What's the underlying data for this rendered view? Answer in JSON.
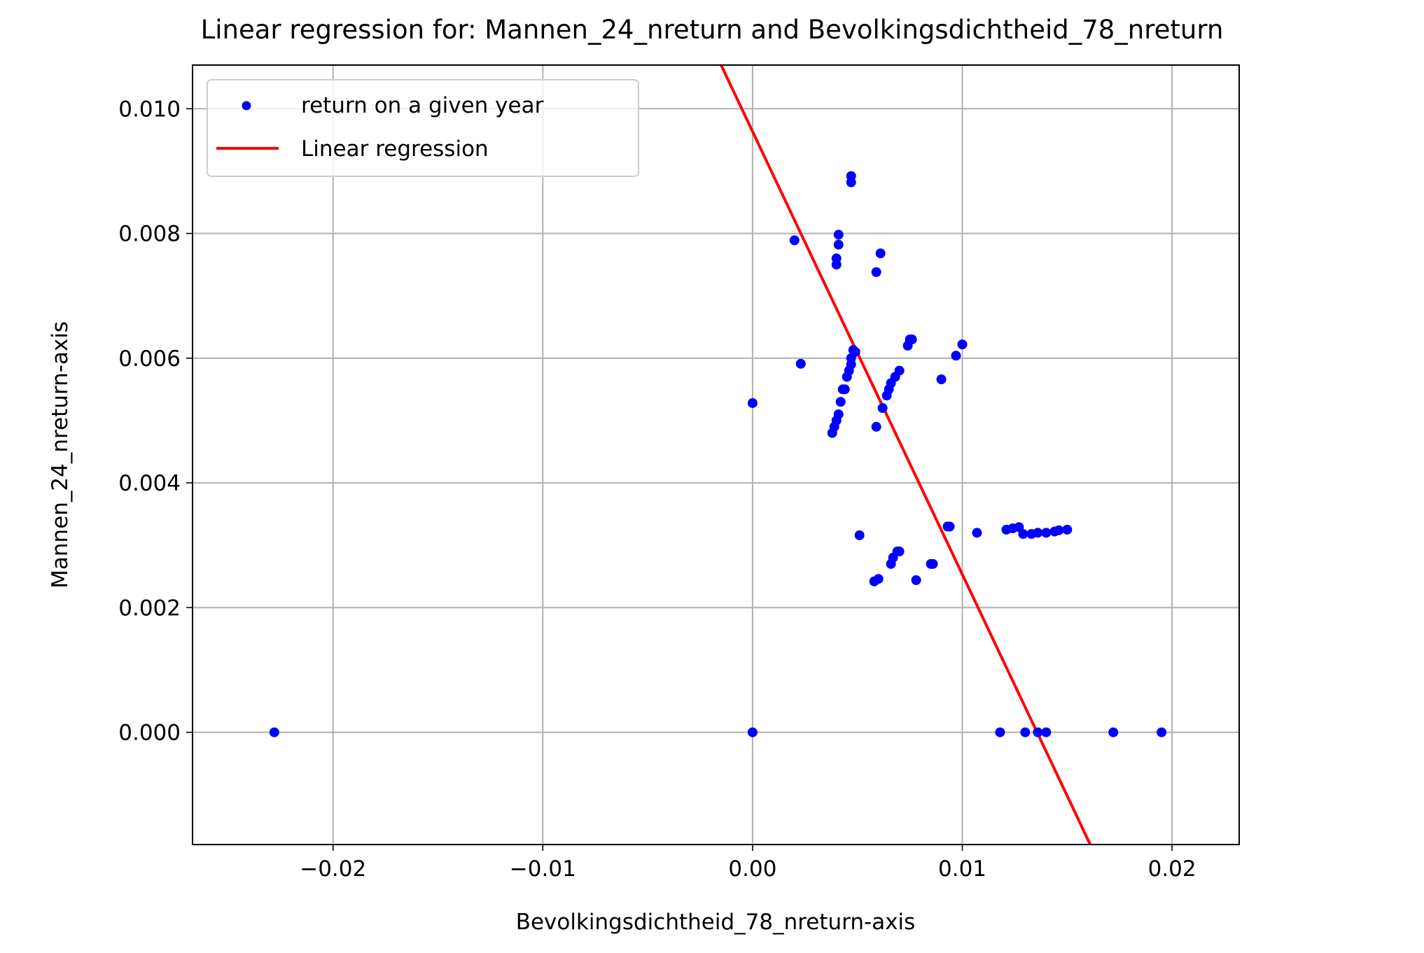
{
  "chart_data": {
    "type": "scatter",
    "title": "Linear regression for: Mannen_24_nreturn and Bevolkingsdichtheid_78_nreturn",
    "xlabel": "Bevolkingsdichtheid_78_nreturn-axis",
    "ylabel": "Mannen_24_nreturn-axis",
    "xlim": [
      -0.0267,
      0.0232
    ],
    "ylim": [
      -0.0018,
      0.0107
    ],
    "grid": true,
    "legend_placement": "top-left",
    "x_ticks": [
      -0.02,
      -0.01,
      0.0,
      0.01,
      0.02
    ],
    "x_tick_labels": [
      "−0.02",
      "−0.01",
      "0.00",
      "0.01",
      "0.02"
    ],
    "y_ticks": [
      0.0,
      0.002,
      0.004,
      0.006,
      0.008,
      0.01
    ],
    "y_tick_labels": [
      "0.000",
      "0.002",
      "0.004",
      "0.006",
      "0.008",
      "0.010"
    ],
    "series": [
      {
        "name": "return on a given year",
        "type": "scatter",
        "color": "#0000ff",
        "points": [
          [
            -0.0228,
            0.0
          ],
          [
            0.0,
            0.0
          ],
          [
            0.0118,
            0.0
          ],
          [
            0.013,
            0.0
          ],
          [
            0.0136,
            0.0
          ],
          [
            0.014,
            0.0
          ],
          [
            0.0172,
            0.0
          ],
          [
            0.0195,
            0.0
          ],
          [
            0.0,
            0.00528
          ],
          [
            0.0047,
            0.00892
          ],
          [
            0.0047,
            0.00882
          ],
          [
            0.002,
            0.00789
          ],
          [
            0.0041,
            0.00798
          ],
          [
            0.0041,
            0.00782
          ],
          [
            0.0061,
            0.00768
          ],
          [
            0.004,
            0.0076
          ],
          [
            0.004,
            0.0075
          ],
          [
            0.0059,
            0.00738
          ],
          [
            0.0023,
            0.00591
          ],
          [
            0.0048,
            0.00613
          ],
          [
            0.0049,
            0.0061
          ],
          [
            0.0047,
            0.006
          ],
          [
            0.0047,
            0.0059
          ],
          [
            0.0046,
            0.0058
          ],
          [
            0.0045,
            0.0057
          ],
          [
            0.0044,
            0.0055
          ],
          [
            0.0043,
            0.0055
          ],
          [
            0.0042,
            0.0053
          ],
          [
            0.0041,
            0.0051
          ],
          [
            0.004,
            0.005
          ],
          [
            0.0039,
            0.0049
          ],
          [
            0.0038,
            0.0048
          ],
          [
            0.0059,
            0.0049
          ],
          [
            0.0062,
            0.0052
          ],
          [
            0.0064,
            0.0054
          ],
          [
            0.0065,
            0.0055
          ],
          [
            0.0066,
            0.0056
          ],
          [
            0.0068,
            0.0057
          ],
          [
            0.007,
            0.0058
          ],
          [
            0.0074,
            0.0062
          ],
          [
            0.0075,
            0.0063
          ],
          [
            0.0076,
            0.0063
          ],
          [
            0.009,
            0.00566
          ],
          [
            0.0097,
            0.00604
          ],
          [
            0.01,
            0.00622
          ],
          [
            0.0051,
            0.00316
          ],
          [
            0.0058,
            0.00242
          ],
          [
            0.006,
            0.00246
          ],
          [
            0.0066,
            0.0027
          ],
          [
            0.0067,
            0.0028
          ],
          [
            0.0069,
            0.0029
          ],
          [
            0.007,
            0.0029
          ],
          [
            0.0078,
            0.00244
          ],
          [
            0.0085,
            0.0027
          ],
          [
            0.0086,
            0.0027
          ],
          [
            0.0093,
            0.0033
          ],
          [
            0.0094,
            0.0033
          ],
          [
            0.0107,
            0.0032
          ],
          [
            0.0121,
            0.00325
          ],
          [
            0.0124,
            0.00327
          ],
          [
            0.0127,
            0.00329
          ],
          [
            0.0129,
            0.00318
          ],
          [
            0.0133,
            0.00318
          ],
          [
            0.0136,
            0.0032
          ],
          [
            0.014,
            0.0032
          ],
          [
            0.0144,
            0.00322
          ],
          [
            0.0146,
            0.00324
          ],
          [
            0.015,
            0.00325
          ]
        ]
      },
      {
        "name": "Linear regression",
        "type": "line",
        "color": "#ff0000",
        "points": [
          [
            -0.0015,
            0.0107
          ],
          [
            0.0161,
            -0.0018
          ]
        ]
      }
    ]
  }
}
